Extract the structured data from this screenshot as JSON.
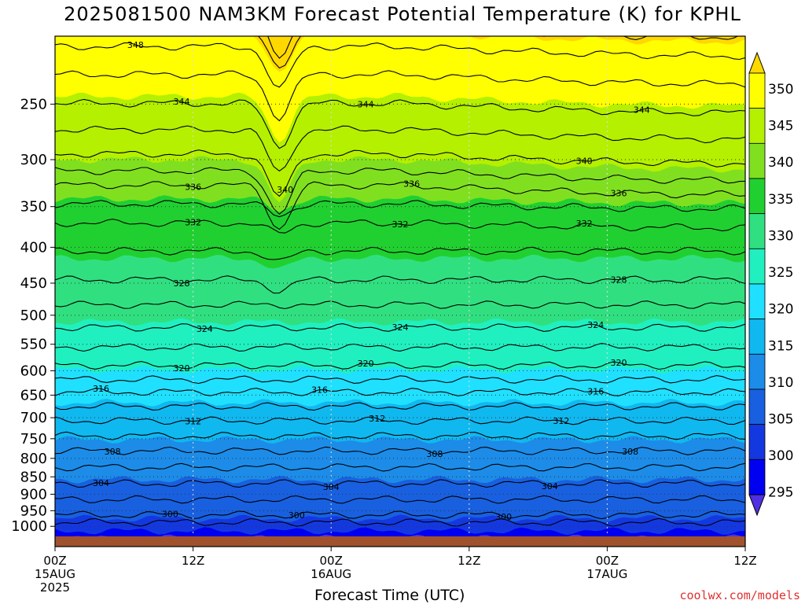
{
  "chart_data": {
    "type": "contour",
    "title": "2025081500 NAM3KM Forecast Potential Temperature (K) for KPHL",
    "xlabel": "Forecast Time (UTC)",
    "credit": "coolwx.com/models",
    "x_ticks": [
      {
        "hour": 0,
        "label": "00Z",
        "sub1": "15AUG",
        "sub2": "2025"
      },
      {
        "hour": 12,
        "label": "12Z",
        "sub1": "",
        "sub2": ""
      },
      {
        "hour": 24,
        "label": "00Z",
        "sub1": "16AUG",
        "sub2": ""
      },
      {
        "hour": 36,
        "label": "12Z",
        "sub1": "",
        "sub2": ""
      },
      {
        "hour": 48,
        "label": "00Z",
        "sub1": "17AUG",
        "sub2": ""
      },
      {
        "hour": 60,
        "label": "12Z",
        "sub1": "",
        "sub2": ""
      }
    ],
    "xlim": [
      0,
      60
    ],
    "ylabel": "",
    "y_ticks": [
      250,
      300,
      350,
      400,
      450,
      500,
      550,
      600,
      650,
      700,
      750,
      800,
      850,
      900,
      950,
      1000
    ],
    "ylim": [
      1020,
      200
    ],
    "y_scale": "log",
    "colorbar": {
      "labels": [
        350,
        345,
        340,
        335,
        330,
        325,
        320,
        315,
        310,
        305,
        300,
        295
      ],
      "colors": [
        "#ffd800",
        "#ffff00",
        "#b4f000",
        "#80e020",
        "#20d030",
        "#30e080",
        "#20f0c0",
        "#20e0ff",
        "#10b8f0",
        "#1c8ce8",
        "#1860e0",
        "#1438e0",
        "#0000f0",
        "#5030e0"
      ]
    },
    "contour_labels": [
      {
        "value": "348",
        "hour": 7
      },
      {
        "value": "344",
        "hour": 11
      },
      {
        "value": "344",
        "hour": 27
      },
      {
        "value": "344",
        "hour": 51
      },
      {
        "value": "340",
        "hour": 20
      },
      {
        "value": "340",
        "hour": 46
      },
      {
        "value": "336",
        "hour": 12
      },
      {
        "value": "336",
        "hour": 31
      },
      {
        "value": "336",
        "hour": 49
      },
      {
        "value": "332",
        "hour": 12
      },
      {
        "value": "332",
        "hour": 30
      },
      {
        "value": "332",
        "hour": 46
      },
      {
        "value": "328",
        "hour": 11
      },
      {
        "value": "328",
        "hour": 49
      },
      {
        "value": "324",
        "hour": 13
      },
      {
        "value": "324",
        "hour": 30
      },
      {
        "value": "324",
        "hour": 47
      },
      {
        "value": "320",
        "hour": 11
      },
      {
        "value": "320",
        "hour": 27
      },
      {
        "value": "320",
        "hour": 49
      },
      {
        "value": "316",
        "hour": 4
      },
      {
        "value": "316",
        "hour": 23
      },
      {
        "value": "316",
        "hour": 47
      },
      {
        "value": "312",
        "hour": 12
      },
      {
        "value": "312",
        "hour": 28
      },
      {
        "value": "312",
        "hour": 44
      },
      {
        "value": "308",
        "hour": 5
      },
      {
        "value": "308",
        "hour": 33
      },
      {
        "value": "308",
        "hour": 50
      },
      {
        "value": "304",
        "hour": 4
      },
      {
        "value": "304",
        "hour": 24
      },
      {
        "value": "304",
        "hour": 43
      },
      {
        "value": "300",
        "hour": 10
      },
      {
        "value": "300",
        "hour": 21
      },
      {
        "value": "300",
        "hour": 39
      }
    ]
  }
}
